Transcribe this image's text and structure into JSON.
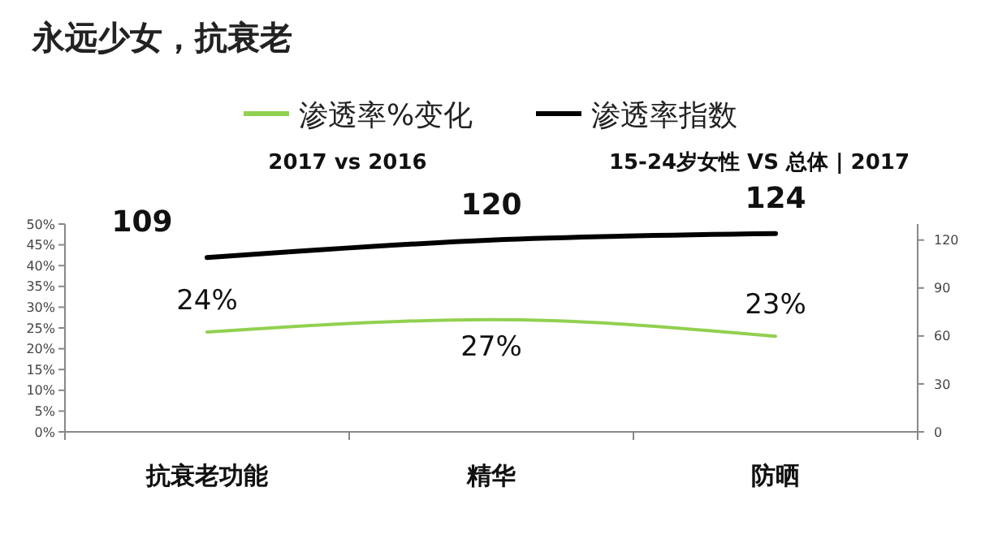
{
  "chart_data": {
    "type": "line",
    "title": "永远少女，抗衰老",
    "subtitle": "2017 vs 2016",
    "annotations": [
      "15-24岁女性 VS 总体 | 2017"
    ],
    "categories": [
      "抗衰老功能",
      "精华",
      "防晒"
    ],
    "series": [
      {
        "name": "渗透率%变化",
        "color": "#92d050",
        "values": [
          24,
          27,
          23
        ],
        "value_labels": [
          "24%",
          "27%",
          "23%"
        ]
      },
      {
        "name": "渗透率指数",
        "color": "#000000",
        "axis": "y2",
        "values": [
          109,
          120,
          124
        ],
        "value_labels": [
          "109",
          "120",
          "124"
        ]
      }
    ],
    "ylim": [
      0,
      50
    ],
    "yticks": [
      {
        "value": 0,
        "label": "0%"
      },
      {
        "value": 5,
        "label": "5%"
      },
      {
        "value": 10,
        "label": "10%"
      },
      {
        "value": 15,
        "label": "15%"
      },
      {
        "value": 20,
        "label": "20%"
      },
      {
        "value": 25,
        "label": "25%"
      },
      {
        "value": 30,
        "label": "30%"
      },
      {
        "value": 35,
        "label": "35%"
      },
      {
        "value": 40,
        "label": "40%"
      },
      {
        "value": 45,
        "label": "45%"
      },
      {
        "value": 50,
        "label": "50%"
      }
    ],
    "y2lim": [
      0,
      130
    ],
    "y2ticks": [
      0,
      30,
      60,
      90,
      120
    ],
    "legend": "top",
    "grid": false,
    "marker": "none",
    "line_style": "solid"
  }
}
